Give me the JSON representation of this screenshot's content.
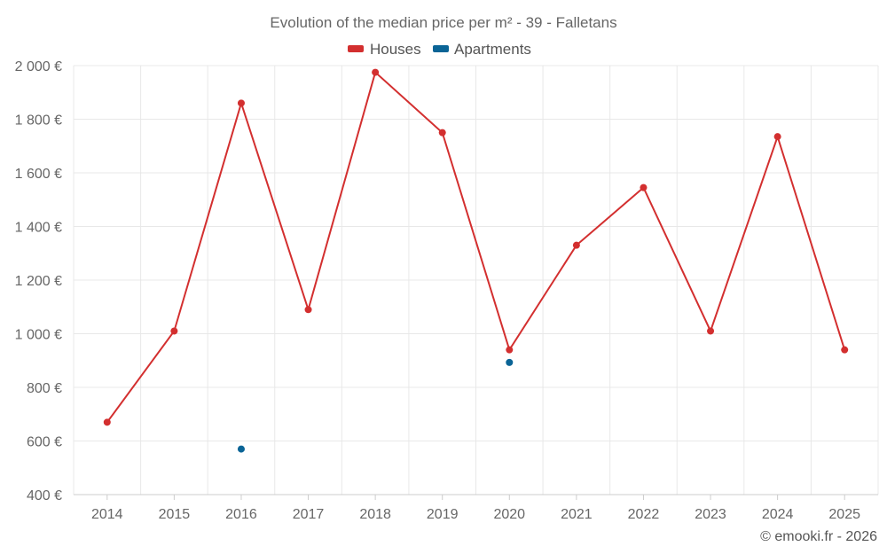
{
  "chart_data": {
    "type": "line",
    "title": "Evolution of the median price per m² - 39 - Falletans",
    "categories": [
      "2014",
      "2015",
      "2016",
      "2017",
      "2018",
      "2019",
      "2020",
      "2021",
      "2022",
      "2023",
      "2024",
      "2025"
    ],
    "series": [
      {
        "name": "Houses",
        "color": "#d32f2f",
        "values": [
          670,
          1010,
          1860,
          1090,
          1975,
          1750,
          940,
          1330,
          1545,
          1010,
          1735,
          940
        ]
      },
      {
        "name": "Apartments",
        "color": "#0a6496",
        "values": [
          null,
          null,
          570,
          null,
          null,
          null,
          893,
          null,
          null,
          null,
          null,
          null
        ]
      }
    ],
    "y_ticks": [
      "400 €",
      "600 €",
      "800 €",
      "1 000 €",
      "1 200 €",
      "1 400 €",
      "1 600 €",
      "1 800 €",
      "2 000 €"
    ],
    "ylim": [
      400,
      2000
    ],
    "xlabel": "",
    "ylabel": "",
    "grid": true,
    "legend_position": "top-center"
  },
  "credit": "© emooki.fr - 2026"
}
